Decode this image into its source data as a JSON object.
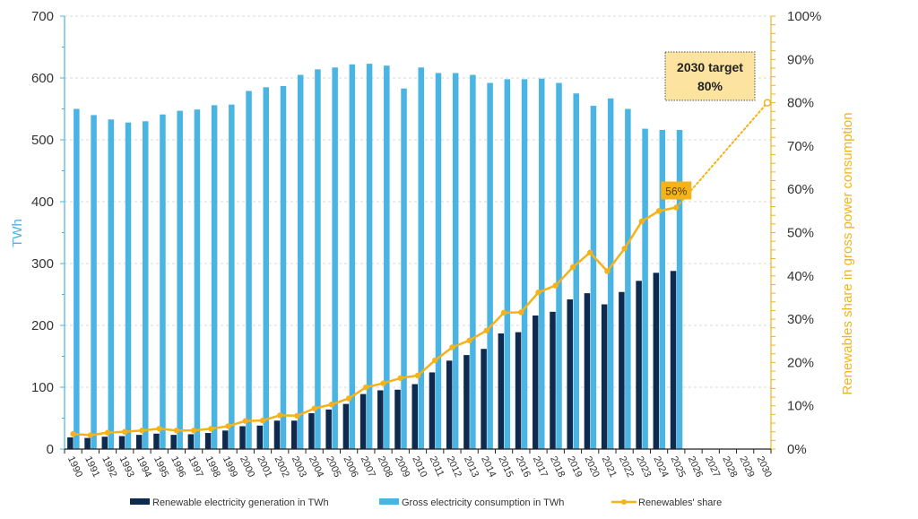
{
  "chart_data": {
    "type": "bar",
    "title": "",
    "xlabel": "",
    "ylabel": "TWh",
    "ylabel_right": "Renewables share in gross power consumption",
    "ylim": [
      0,
      700
    ],
    "ylim_right": [
      0,
      100
    ],
    "yticks": [
      "0",
      "100",
      "200",
      "300",
      "400",
      "500",
      "600",
      "700"
    ],
    "yticks_right": [
      "0%",
      "10%",
      "20%",
      "30%",
      "40%",
      "50%",
      "60%",
      "70%",
      "80%",
      "90%",
      "100%"
    ],
    "grid": true,
    "legend_position": "bottom",
    "categories": [
      "1990",
      "1991",
      "1992",
      "1993",
      "1994",
      "1995",
      "1996",
      "1997",
      "1998",
      "1999",
      "2000",
      "2001",
      "2002",
      "2003",
      "2004",
      "2005",
      "2006",
      "2007",
      "2008",
      "2009",
      "2010",
      "2011",
      "2012",
      "2013",
      "2014",
      "2015",
      "2016",
      "2017",
      "2018",
      "2019",
      "2020",
      "2021",
      "2022",
      "2023",
      "2024",
      "2025",
      "2026",
      "2027",
      "2028",
      "2029",
      "2030"
    ],
    "series": [
      {
        "name": "Renewable electricity generation in TWh",
        "type": "bar",
        "axis": "left",
        "color": "#0e2a4f",
        "values": [
          19,
          18,
          20,
          21,
          23,
          25,
          23,
          24,
          26,
          30,
          37,
          38,
          46,
          46,
          58,
          64,
          73,
          89,
          95,
          96,
          105,
          124,
          143,
          152,
          162,
          187,
          189,
          216,
          222,
          242,
          252,
          234,
          254,
          272,
          285,
          288,
          null,
          null,
          null,
          null,
          null
        ]
      },
      {
        "name": "Gross electricity consumption in TWh",
        "type": "bar",
        "axis": "left",
        "color": "#4ab4e2",
        "values": [
          550,
          540,
          533,
          528,
          530,
          541,
          547,
          549,
          556,
          557,
          579,
          585,
          587,
          605,
          614,
          617,
          622,
          623,
          620,
          583,
          617,
          608,
          608,
          605,
          592,
          598,
          598,
          599,
          592,
          575,
          555,
          567,
          550,
          518,
          516,
          516,
          null,
          null,
          null,
          null,
          null
        ]
      },
      {
        "name": "Renewables' share",
        "type": "line",
        "axis": "right",
        "unit": "%",
        "color": "#f5b21b",
        "values": [
          3.5,
          3.2,
          3.8,
          4.0,
          4.3,
          4.7,
          4.3,
          4.3,
          4.7,
          5.3,
          6.5,
          6.6,
          7.8,
          7.7,
          9.4,
          10.3,
          11.7,
          14.3,
          15.2,
          16.4,
          17.0,
          20.5,
          23.5,
          25.1,
          27.4,
          31.5,
          31.6,
          36.2,
          37.8,
          42.0,
          45.4,
          41.1,
          46.3,
          52.6,
          55.0,
          55.8,
          null,
          null,
          null,
          null,
          null
        ]
      }
    ],
    "annotations": {
      "target": {
        "line1": "2030 target",
        "line2": "80%",
        "year": "2030",
        "value": 80
      },
      "last_value_label": "56%",
      "projection_from_year": "2025"
    },
    "legend": [
      {
        "label": "Renewable electricity generation in TWh",
        "color": "#0e2a4f",
        "marker": "bar"
      },
      {
        "label": "Gross electricity consumption in TWh",
        "color": "#4ab4e2",
        "marker": "bar"
      },
      {
        "label": "Renewables' share",
        "color": "#f5b21b",
        "marker": "line"
      }
    ]
  }
}
